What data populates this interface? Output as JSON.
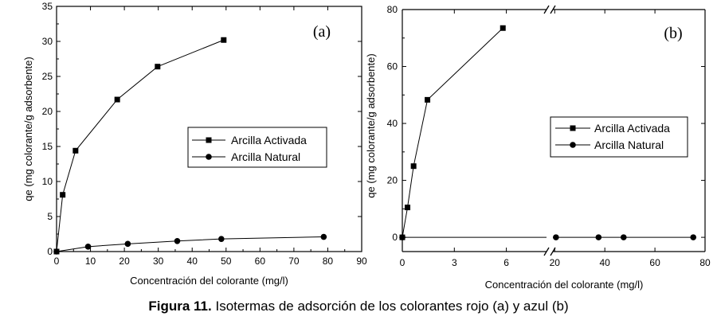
{
  "caption": {
    "label": "Figura 11.",
    "text": "Isotermas de adsorción de los colorantes rojo (a) y azul (b)"
  },
  "chart_data": [
    {
      "type": "line",
      "panel_label": "(a)",
      "xlabel": "Concentración del colorante (mg/l)",
      "ylabel": "qe (mg colorante/g adsorbente)",
      "xlim": [
        0,
        90
      ],
      "ylim": [
        0,
        35
      ],
      "xticks": [
        0,
        10,
        20,
        30,
        40,
        50,
        60,
        70,
        80,
        90
      ],
      "yticks": [
        0,
        5,
        10,
        15,
        20,
        25,
        30,
        35
      ],
      "legend_position": "center-right",
      "series": [
        {
          "name": "Arcilla Activada",
          "marker": "square",
          "x": [
            0,
            1.8,
            5.6,
            17.9,
            29.8,
            49.3
          ],
          "y": [
            0,
            8.1,
            14.4,
            21.7,
            26.4,
            30.2
          ]
        },
        {
          "name": "Arcilla Natural",
          "marker": "circle",
          "x": [
            0,
            9.3,
            21.0,
            35.6,
            48.6,
            78.8
          ],
          "y": [
            0,
            0.7,
            1.1,
            1.5,
            1.8,
            2.1
          ]
        }
      ]
    },
    {
      "type": "line",
      "panel_label": "(b)",
      "xlabel": "Concentración del colorante (mg/l)",
      "ylabel": "qe (mg colorante/g adsorbente)",
      "broken_x_axis": true,
      "xlim_segments": [
        [
          0,
          8.5
        ],
        [
          18,
          80
        ]
      ],
      "ylim": [
        -5,
        80
      ],
      "xticks_left": [
        0,
        3,
        6
      ],
      "xticks_right": [
        20,
        40,
        60,
        80
      ],
      "yticks": [
        0,
        20,
        40,
        60,
        80
      ],
      "legend_position": "center-right",
      "series": [
        {
          "name": "Arcilla Activada",
          "marker": "square",
          "x": [
            0,
            0.3,
            0.65,
            1.45,
            5.8
          ],
          "y": [
            0,
            10.5,
            25,
            48.3,
            73.5
          ]
        },
        {
          "name": "Arcilla Natural",
          "marker": "circle",
          "x": [
            0,
            20.5,
            37.5,
            47.5,
            75.3
          ],
          "y": [
            0,
            0,
            0,
            0,
            0
          ]
        }
      ]
    }
  ]
}
